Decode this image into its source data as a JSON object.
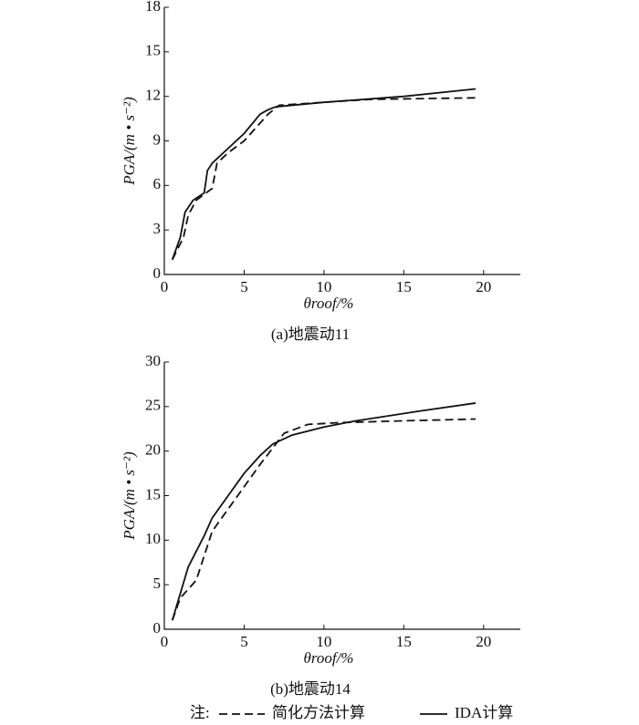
{
  "chart_data": [
    {
      "type": "line",
      "caption": "(a)地震动11",
      "x_label": "θroof/%",
      "y_label": "PGA/(m • s⁻²)",
      "xlim": [
        0,
        22.3
      ],
      "xticks": [
        0,
        5,
        10,
        15,
        20
      ],
      "ylim": [
        0,
        18
      ],
      "yticks": [
        0,
        3,
        6,
        9,
        12,
        15,
        18
      ],
      "series": [
        {
          "name": "简化方法计算",
          "color": "#111",
          "dash": true,
          "x": [
            0.5,
            1.2,
            1.5,
            2,
            3,
            3.3,
            4,
            5,
            6.5,
            7.2,
            10,
            13,
            19.5
          ],
          "values": [
            1,
            2.5,
            4,
            5,
            5.8,
            7.5,
            8.2,
            9,
            10.8,
            11.4,
            11.6,
            11.8,
            11.9
          ]
        },
        {
          "name": "IDA计算",
          "color": "#111",
          "dash": false,
          "x": [
            0.5,
            1,
            1.3,
            1.8,
            2.5,
            2.7,
            3,
            4,
            5,
            6,
            6.5,
            7,
            10,
            15,
            19.5
          ],
          "values": [
            1,
            2.5,
            4.2,
            5,
            5.5,
            7,
            7.5,
            8.5,
            9.5,
            10.8,
            11.1,
            11.3,
            11.6,
            12,
            12.5
          ]
        }
      ]
    },
    {
      "type": "line",
      "caption": "(b)地震动14",
      "x_label": "θroof/%",
      "y_label": "PGA/(m • s⁻²)",
      "xlim": [
        0,
        22.3
      ],
      "xticks": [
        0,
        5,
        10,
        15,
        20
      ],
      "ylim": [
        0,
        30
      ],
      "yticks": [
        0,
        5,
        10,
        15,
        20,
        25,
        30
      ],
      "series": [
        {
          "name": "简化方法计算",
          "color": "#111",
          "dash": true,
          "x": [
            0.5,
            1,
            2,
            3,
            4,
            5,
            6,
            7.5,
            9,
            11,
            15,
            19.5
          ],
          "values": [
            1,
            3.5,
            5.5,
            11,
            13.5,
            16,
            18.5,
            22,
            23,
            23.2,
            23.4,
            23.6
          ]
        },
        {
          "name": "IDA计算",
          "color": "#111",
          "dash": false,
          "x": [
            0.5,
            1,
            1.5,
            2.5,
            3,
            4,
            5,
            6,
            6.8,
            8,
            10,
            12,
            16,
            19.5
          ],
          "values": [
            1,
            4,
            7,
            10.5,
            12.5,
            15,
            17.5,
            19.5,
            20.8,
            21.8,
            22.7,
            23.4,
            24.5,
            25.4
          ]
        }
      ]
    }
  ],
  "legend": {
    "note": "注:"
  }
}
